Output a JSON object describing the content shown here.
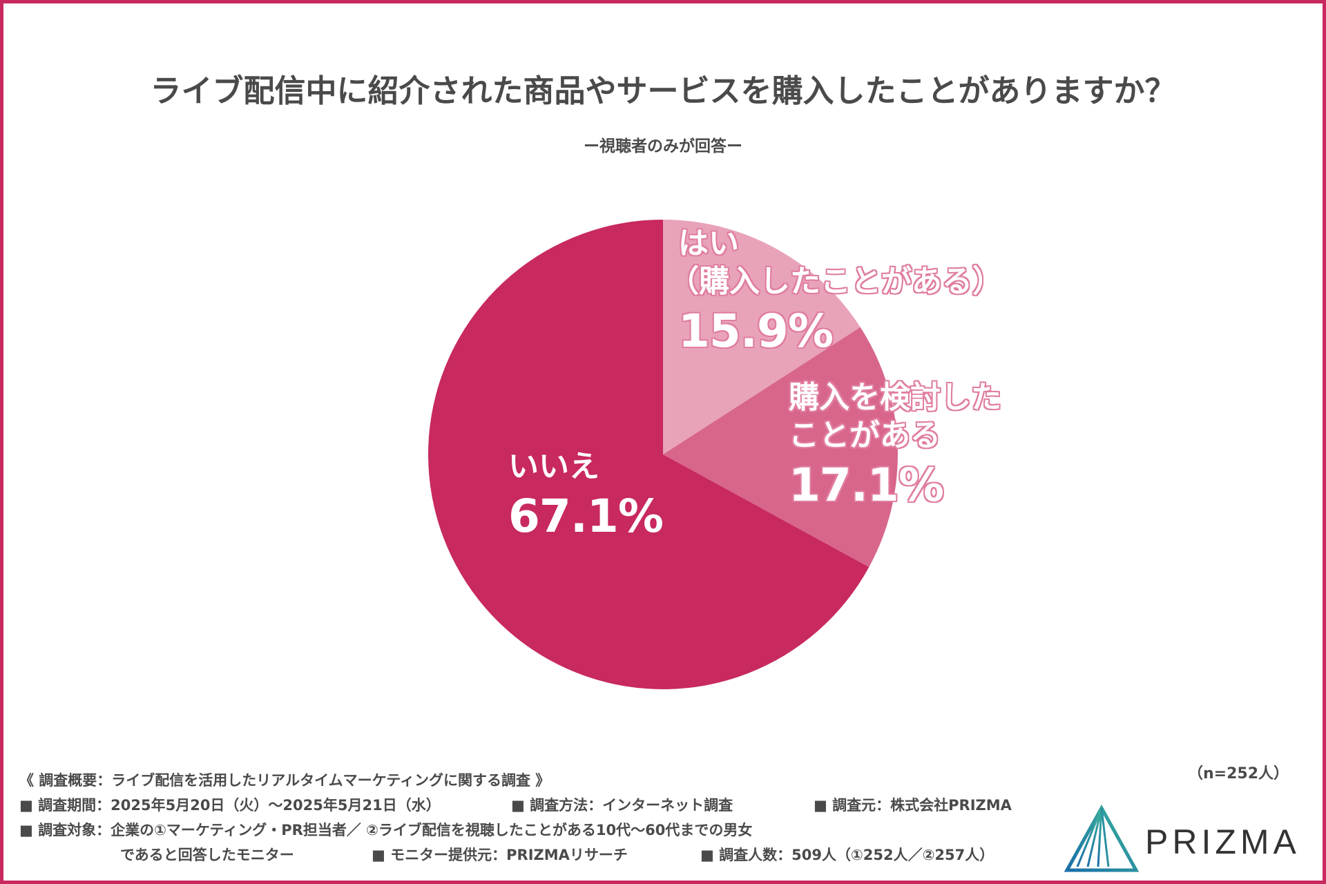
{
  "colors": {
    "border": "#c8295f",
    "slice_yes": "#e8a3b9",
    "slice_consider": "#d8668b",
    "slice_no": "#c8295f"
  },
  "header": {
    "title": "ライブ配信中に紹介された商品やサービスを購入したことがありますか？",
    "subtitle": "ー視聴者のみが回答ー"
  },
  "chart_data": {
    "type": "pie",
    "series": [
      {
        "label_line1": "はい",
        "label_line2": "（購入したことがある）",
        "percent_label": "15.9%",
        "value": 15.9
      },
      {
        "label_line1": "購入を検討した",
        "label_line2": "ことがある",
        "percent_label": "17.1%",
        "value": 17.1
      },
      {
        "label_line1": "いいえ",
        "label_line2": "",
        "percent_label": "67.1%",
        "value": 67.1
      }
    ]
  },
  "sample_size": "（n=252人）",
  "notes": {
    "overview": "《 調査概要：ライブ配信を活用したリアルタイムマーケティングに関する調査 》",
    "period": "■ 調査期間：2025年5月20日（火）〜2025年5月21日（水）",
    "method": "■ 調査方法：インターネット調査",
    "source": "■ 調査元：株式会社PRIZMA",
    "target": "■ 調査対象：企業の①マーケティング・PR担当者／ ②ライブ配信を視聴したことがある10代〜60代までの男女",
    "target_cont": "であると回答したモニター",
    "provider": "■ モニター提供元：PRIZMAリサーチ",
    "count": "■ 調査人数：509人（①252人／②257人）"
  },
  "logo": {
    "text": "PRIZMA",
    "icon": "prizma-triangle-logo-icon"
  }
}
